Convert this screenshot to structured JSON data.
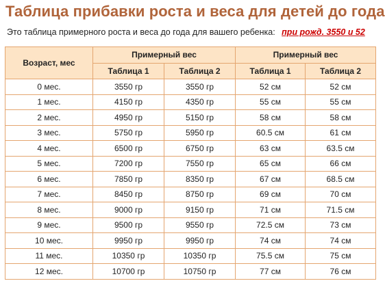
{
  "page": {
    "title": "Таблица прибавки роста и веса для детей до года",
    "subtitle": "Это таблица примерного роста и веса до года для вашего ребенка:",
    "birth_link": "при рожд. 3550 и 52"
  },
  "table": {
    "age_header": "Возраст, мес",
    "weight_header": "Примерный вес",
    "height_header": "Примерный вес",
    "sub_headers": [
      "Таблица 1",
      "Таблица 2",
      "Таблица 1",
      "Таблица 2"
    ],
    "rows": [
      [
        "0 мес.",
        "3550 гр",
        "3550 гр",
        "52 см",
        "52 см"
      ],
      [
        "1 мес.",
        "4150 гр",
        "4350 гр",
        "55 см",
        "55 см"
      ],
      [
        "2 мес.",
        "4950 гр",
        "5150 гр",
        "58 см",
        "58 см"
      ],
      [
        "3 мес.",
        "5750 гр",
        "5950 гр",
        "60.5 см",
        "61 см"
      ],
      [
        "4 мес.",
        "6500 гр",
        "6750 гр",
        "63 см",
        "63.5 см"
      ],
      [
        "5 мес.",
        "7200 гр",
        "7550 гр",
        "65 см",
        "66 см"
      ],
      [
        "6 мес.",
        "7850 гр",
        "8350 гр",
        "67 см",
        "68.5 см"
      ],
      [
        "7 мес.",
        "8450 гр",
        "8750 гр",
        "69 см",
        "70 см"
      ],
      [
        "8 мес.",
        "9000 гр",
        "9150 гр",
        "71 см",
        "71.5 см"
      ],
      [
        "9 мес.",
        "9500 гр",
        "9550 гр",
        "72.5 см",
        "73 см"
      ],
      [
        "10 мес.",
        "9950 гр",
        "9950 гр",
        "74 см",
        "74 см"
      ],
      [
        "11 мес.",
        "10350 гр",
        "10350 гр",
        "75.5 см",
        "75 см"
      ],
      [
        "12 мес.",
        "10700 гр",
        "10750 гр",
        "77 см",
        "76 см"
      ]
    ]
  },
  "colors": {
    "title": "#b0643a",
    "header_bg": "#fde4c6",
    "border": "#e4a56f",
    "link": "#cc0000"
  }
}
